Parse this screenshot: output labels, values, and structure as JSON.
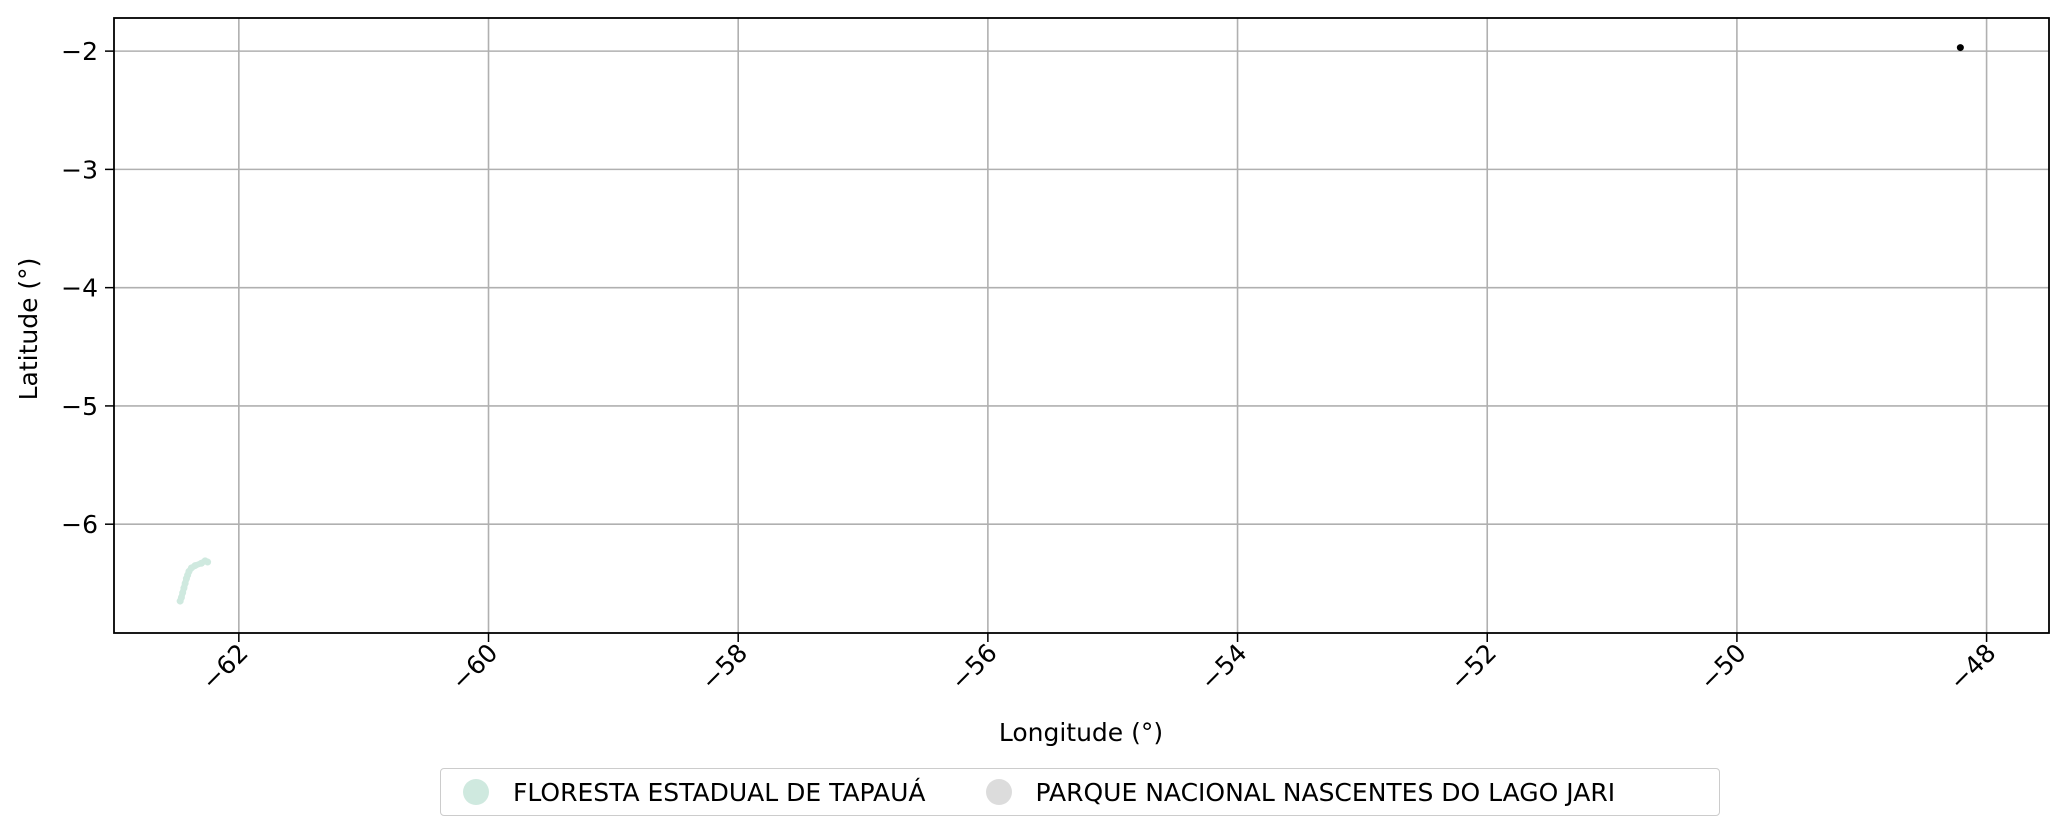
{
  "chart_data": {
    "type": "scatter",
    "xlabel": "Longitude (°)",
    "ylabel": "Latitude (°)",
    "xlim": [
      -63.0,
      -47.5
    ],
    "ylim": [
      -6.92,
      -1.72
    ],
    "xticks": [
      -62,
      -60,
      -58,
      -56,
      -54,
      -52,
      -50,
      -48
    ],
    "xtick_labels": [
      "−62",
      "−60",
      "−58",
      "−56",
      "−54",
      "−52",
      "−50",
      "−48"
    ],
    "yticks": [
      -2,
      -3,
      -4,
      -5,
      -6
    ],
    "ytick_labels": [
      "−2",
      "−3",
      "−4",
      "−5",
      "−6"
    ],
    "grid": true,
    "legend_position": "bottom-center",
    "series": [
      {
        "name": "FLORESTA ESTADUAL DE TAPAUÁ",
        "color": "#cfe9df",
        "points": [
          [
            -62.47,
            -6.65
          ],
          [
            -62.46,
            -6.62
          ],
          [
            -62.45,
            -6.58
          ],
          [
            -62.44,
            -6.54
          ],
          [
            -62.43,
            -6.5
          ],
          [
            -62.42,
            -6.46
          ],
          [
            -62.41,
            -6.43
          ],
          [
            -62.4,
            -6.4
          ],
          [
            -62.38,
            -6.37
          ],
          [
            -62.35,
            -6.35
          ],
          [
            -62.3,
            -6.33
          ],
          [
            -62.27,
            -6.31
          ],
          [
            -62.25,
            -6.32
          ]
        ]
      },
      {
        "name": "PARQUE NACIONAL NASCENTES DO LAGO JARI",
        "color": "#dcdcdc",
        "points": [
          [
            -48.21,
            -1.97
          ]
        ]
      }
    ]
  }
}
